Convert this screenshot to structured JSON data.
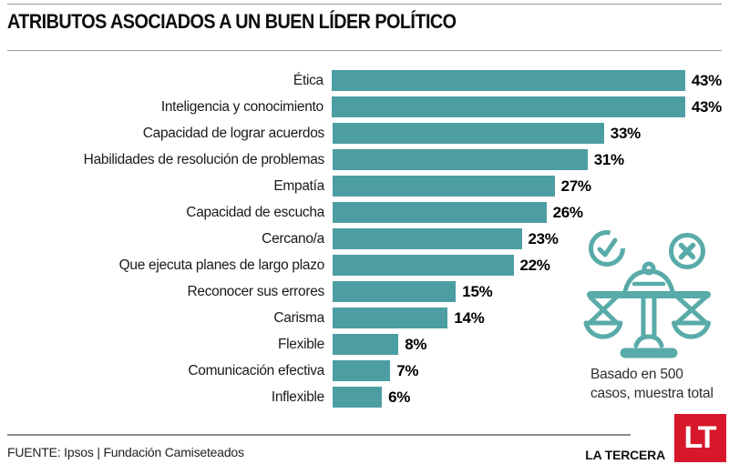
{
  "header": {
    "title": "ATRIBUTOS ASOCIADOS A UN BUEN LÍDER POLÍTICO"
  },
  "chart_data": {
    "type": "bar",
    "orientation": "horizontal",
    "title": "ATRIBUTOS ASOCIADOS A UN BUEN LÍDER POLÍTICO",
    "categories": [
      "Ética",
      "Inteligencia y conocimiento",
      "Capacidad de lograr acuerdos",
      "Habilidades de resolución de problemas",
      "Empatía",
      "Capacidad de escucha",
      "Cercano/a",
      "Que ejecuta planes de largo plazo",
      "Reconocer sus errores",
      "Carisma",
      "Flexible",
      "Comunicación efectiva",
      "Inflexible"
    ],
    "values": [
      43,
      43,
      33,
      31,
      27,
      26,
      23,
      22,
      15,
      14,
      8,
      7,
      6
    ],
    "display_values": [
      "43%",
      "43%",
      "33%",
      "31%",
      "27%",
      "26%",
      "23%",
      "22%",
      "15%",
      "14%",
      "8%",
      "7%",
      "6%"
    ],
    "value_suffix": "%",
    "xlim": [
      0,
      43
    ],
    "grid": false,
    "legend": false,
    "bar_color": "#4D9EA2"
  },
  "annotation": {
    "line1": "Basado en 500",
    "line2": "casos, muestra total",
    "icons": [
      "check-circle-icon",
      "x-circle-icon",
      "balance-scale-icon"
    ]
  },
  "footer": {
    "source": "FUENTE: Ipsos | Fundación Camiseteados",
    "brand": "LA TERCERA",
    "logo": "LT"
  },
  "colors": {
    "bar": "#4D9EA2",
    "illustration": "#58ABA8",
    "logo_red": "#D7182A",
    "rule": "#9A9A9A"
  }
}
